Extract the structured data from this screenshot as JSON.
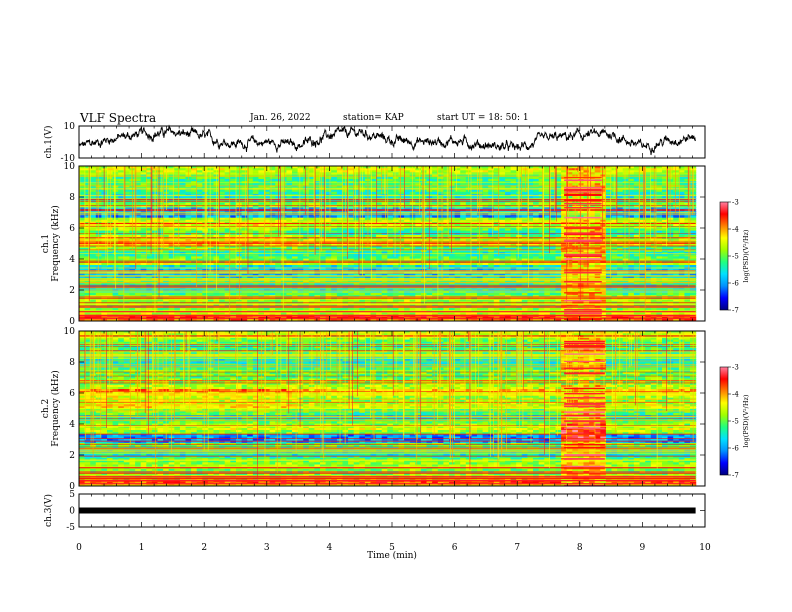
{
  "header": {
    "title": "VLF Spectra",
    "date": "Jan. 26, 2022",
    "station": "station= KAP",
    "start": "start  UT =   18: 50: 1"
  },
  "colors": {
    "colormap": [
      "#000080",
      "#0000ff",
      "#0090ff",
      "#00e0ff",
      "#20ff80",
      "#a0ff00",
      "#ffff00",
      "#ff8000",
      "#ff0000",
      "#ff80a0",
      "#ffffff"
    ]
  },
  "chart_data": [
    {
      "type": "line",
      "name": "ch1-voltage",
      "ylabel": "ch.1(V)",
      "ylim": [
        -10,
        10
      ],
      "yticks": [
        "10",
        "-10"
      ],
      "x_range_min": [
        0,
        9.85
      ],
      "description": "noisy time series oscillating between about -6 and 8 V",
      "approx_envelope": [
        {
          "t": 0.0,
          "v": -3
        },
        {
          "t": 0.5,
          "v": 2
        },
        {
          "t": 1.0,
          "v": 5
        },
        {
          "t": 1.5,
          "v": 6
        },
        {
          "t": 2.0,
          "v": 3
        },
        {
          "t": 2.5,
          "v": -1
        },
        {
          "t": 3.0,
          "v": 0
        },
        {
          "t": 3.5,
          "v": -2
        },
        {
          "t": 4.0,
          "v": 4
        },
        {
          "t": 4.5,
          "v": 6
        },
        {
          "t": 5.0,
          "v": 1
        },
        {
          "t": 5.5,
          "v": 0
        },
        {
          "t": 6.0,
          "v": 1
        },
        {
          "t": 6.5,
          "v": -2
        },
        {
          "t": 7.0,
          "v": -4
        },
        {
          "t": 7.5,
          "v": 2
        },
        {
          "t": 8.0,
          "v": 4
        },
        {
          "t": 8.5,
          "v": 5
        },
        {
          "t": 9.0,
          "v": -3
        },
        {
          "t": 9.5,
          "v": 2
        },
        {
          "t": 9.85,
          "v": 3
        }
      ]
    },
    {
      "type": "heatmap",
      "name": "ch1-spectrogram",
      "ylabel": "ch.1\nFrequency (kHz)",
      "ylim": [
        0,
        10
      ],
      "yticks": [
        "0",
        "2",
        "4",
        "6",
        "8",
        "10"
      ],
      "colorbar": {
        "label": "log(PSD)(V²/Hz)",
        "range": [
          -7,
          -3
        ],
        "ticks": [
          "-3",
          "-4",
          "-5",
          "-6",
          "-7"
        ]
      },
      "x_range_min": [
        0,
        9.85
      ],
      "features": {
        "burst_minutes": [
          7.75,
          8.35
        ],
        "low_power_band_khz": [
          6.7,
          7.4
        ],
        "mid_low_band_khz": [
          2.8,
          3.6
        ]
      }
    },
    {
      "type": "heatmap",
      "name": "ch2-spectrogram",
      "ylabel": "ch.2\nFrequency (kHz)",
      "ylim": [
        0,
        10
      ],
      "yticks": [
        "0",
        "2",
        "4",
        "6",
        "8",
        "10"
      ],
      "colorbar": {
        "label": "log(PSD)(V²/Hz)",
        "range": [
          -7,
          -3
        ],
        "ticks": [
          "-3",
          "-4",
          "-5",
          "-6",
          "-7"
        ]
      },
      "x_range_min": [
        0,
        9.85
      ],
      "features": {
        "burst_minutes": [
          7.75,
          8.4
        ],
        "low_power_band_khz": [
          2.8,
          3.4
        ]
      }
    },
    {
      "type": "line",
      "name": "ch3-voltage",
      "ylabel": "ch.3(V)",
      "ylim": [
        -5,
        5
      ],
      "yticks": [
        "5",
        "0",
        "-5"
      ],
      "x_range_min": [
        0,
        9.85
      ],
      "description": "flat thick line at 0 V"
    }
  ],
  "xaxis": {
    "label": "Time (min)",
    "ticks": [
      "0",
      "1",
      "2",
      "3",
      "4",
      "5",
      "6",
      "7",
      "8",
      "9",
      "10"
    ],
    "xlim": [
      0,
      10
    ]
  }
}
